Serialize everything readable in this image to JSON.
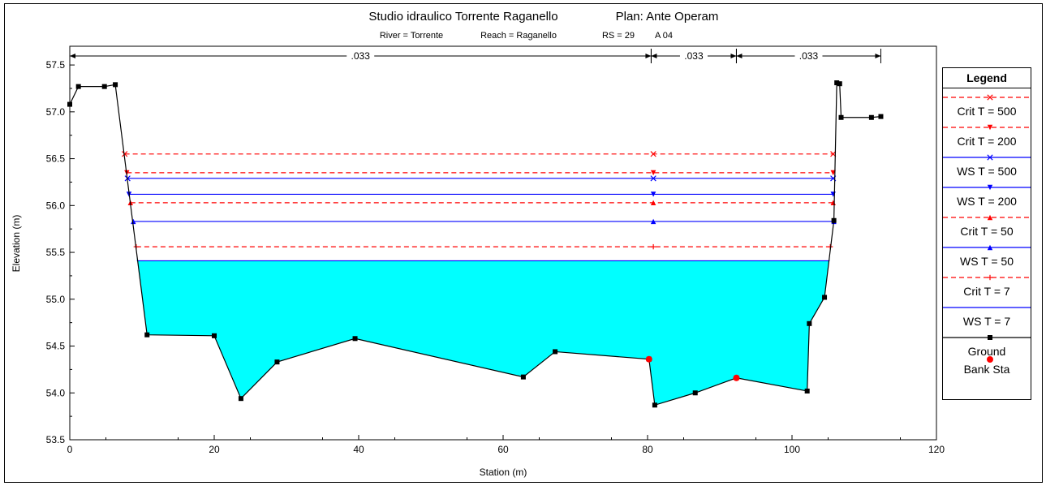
{
  "chart_data": {
    "type": "line",
    "title": "Studio idraulico Torrente Raganello",
    "plan": "Plan: Ante Operam",
    "subtitle": {
      "river": "River = Torrente",
      "reach": "Reach = Raganello",
      "rs": "RS = 29",
      "profile": "A  04"
    },
    "xlabel": "Station (m)",
    "ylabel": "Elevation (m)",
    "xlim": [
      0,
      120
    ],
    "ylim": [
      53.5,
      57.7
    ],
    "x_ticks": [
      0,
      20,
      40,
      60,
      80,
      100,
      120
    ],
    "x_tick_labels": [
      "0",
      "20",
      "40",
      "60",
      "80",
      "100",
      "120"
    ],
    "y_ticks": [
      53.5,
      54.0,
      54.5,
      55.0,
      55.5,
      56.0,
      56.5,
      57.0,
      57.5
    ],
    "y_tick_labels": [
      "53.5",
      "54.0",
      "54.5",
      "55.0",
      "55.5",
      "56.0",
      "56.5",
      "57.0",
      "57.5"
    ],
    "manning": [
      {
        "from": 0,
        "to": 80.5,
        "label": ".033"
      },
      {
        "from": 80.5,
        "to": 92.3,
        "label": ".033"
      },
      {
        "from": 92.3,
        "to": 112.3,
        "label": ".033"
      }
    ],
    "ground": {
      "name": "Ground",
      "x": [
        0,
        1.2,
        4.8,
        6.3,
        10.7,
        20.0,
        23.7,
        28.7,
        39.5,
        62.8,
        67.2,
        80.2,
        81.0,
        86.6,
        92.3,
        102.1,
        102.4,
        104.5,
        105.8,
        106.2,
        106.6,
        106.8,
        111.0,
        112.3
      ],
      "y": [
        57.08,
        57.27,
        57.27,
        57.29,
        54.62,
        54.61,
        53.94,
        54.33,
        54.58,
        54.17,
        54.44,
        54.36,
        53.87,
        54.0,
        54.16,
        54.02,
        54.74,
        55.02,
        55.84,
        57.31,
        57.3,
        56.94,
        56.94,
        56.95
      ]
    },
    "bank_stations": {
      "name": "Bank Sta",
      "x": [
        80.2,
        92.3
      ],
      "y": [
        54.36,
        54.16
      ]
    },
    "water_fill": {
      "name": "WS T = 7",
      "elevation": 55.41,
      "x_left": 9.3,
      "x_right": 105.2
    },
    "series": [
      {
        "name": "Crit  T = 500",
        "style": "dashed",
        "color": "#ff0000",
        "marker": "x",
        "elevation": 56.55,
        "x_left": 7.6,
        "x_right": 105.7
      },
      {
        "name": "Crit  T = 200",
        "style": "dashed",
        "color": "#ff0000",
        "marker": "triangle-down",
        "elevation": 56.35,
        "x_left": 7.9,
        "x_right": 105.7
      },
      {
        "name": "WS  T = 500",
        "style": "solid",
        "color": "#0000ff",
        "marker": "x",
        "elevation": 56.29,
        "x_left": 8.0,
        "x_right": 105.7
      },
      {
        "name": "WS  T = 200",
        "style": "solid",
        "color": "#0000ff",
        "marker": "triangle-down",
        "elevation": 56.12,
        "x_left": 8.2,
        "x_right": 105.7
      },
      {
        "name": "Crit  T = 50",
        "style": "dashed",
        "color": "#ff0000",
        "marker": "triangle-up",
        "elevation": 56.03,
        "x_left": 8.4,
        "x_right": 105.7
      },
      {
        "name": "WS  T = 50",
        "style": "solid",
        "color": "#0000ff",
        "marker": "triangle-up",
        "elevation": 55.83,
        "x_left": 8.8,
        "x_right": 105.8
      },
      {
        "name": "Crit  T = 7",
        "style": "dashed",
        "color": "#ff0000",
        "marker": "plus",
        "elevation": 55.56,
        "x_left": 9.2,
        "x_right": 105.3
      },
      {
        "name": "WS  T = 7",
        "style": "solid",
        "color": "#0000ff",
        "marker": "none",
        "elevation": 55.41,
        "x_left": 9.3,
        "x_right": 105.2
      }
    ],
    "legend": {
      "title": "Legend",
      "placement": "right",
      "entries": [
        "Crit  T = 500",
        "Crit  T = 200",
        "WS  T = 500",
        "WS  T = 200",
        "Crit  T = 50",
        "WS  T = 50",
        "Crit  T = 7",
        "WS  T = 7",
        "Ground",
        "Bank Sta"
      ]
    },
    "colors": {
      "water": "#00ffff",
      "crit": "#ff0000",
      "ws": "#0000ff",
      "ground": "#000000",
      "bank": "#ff0000"
    }
  }
}
